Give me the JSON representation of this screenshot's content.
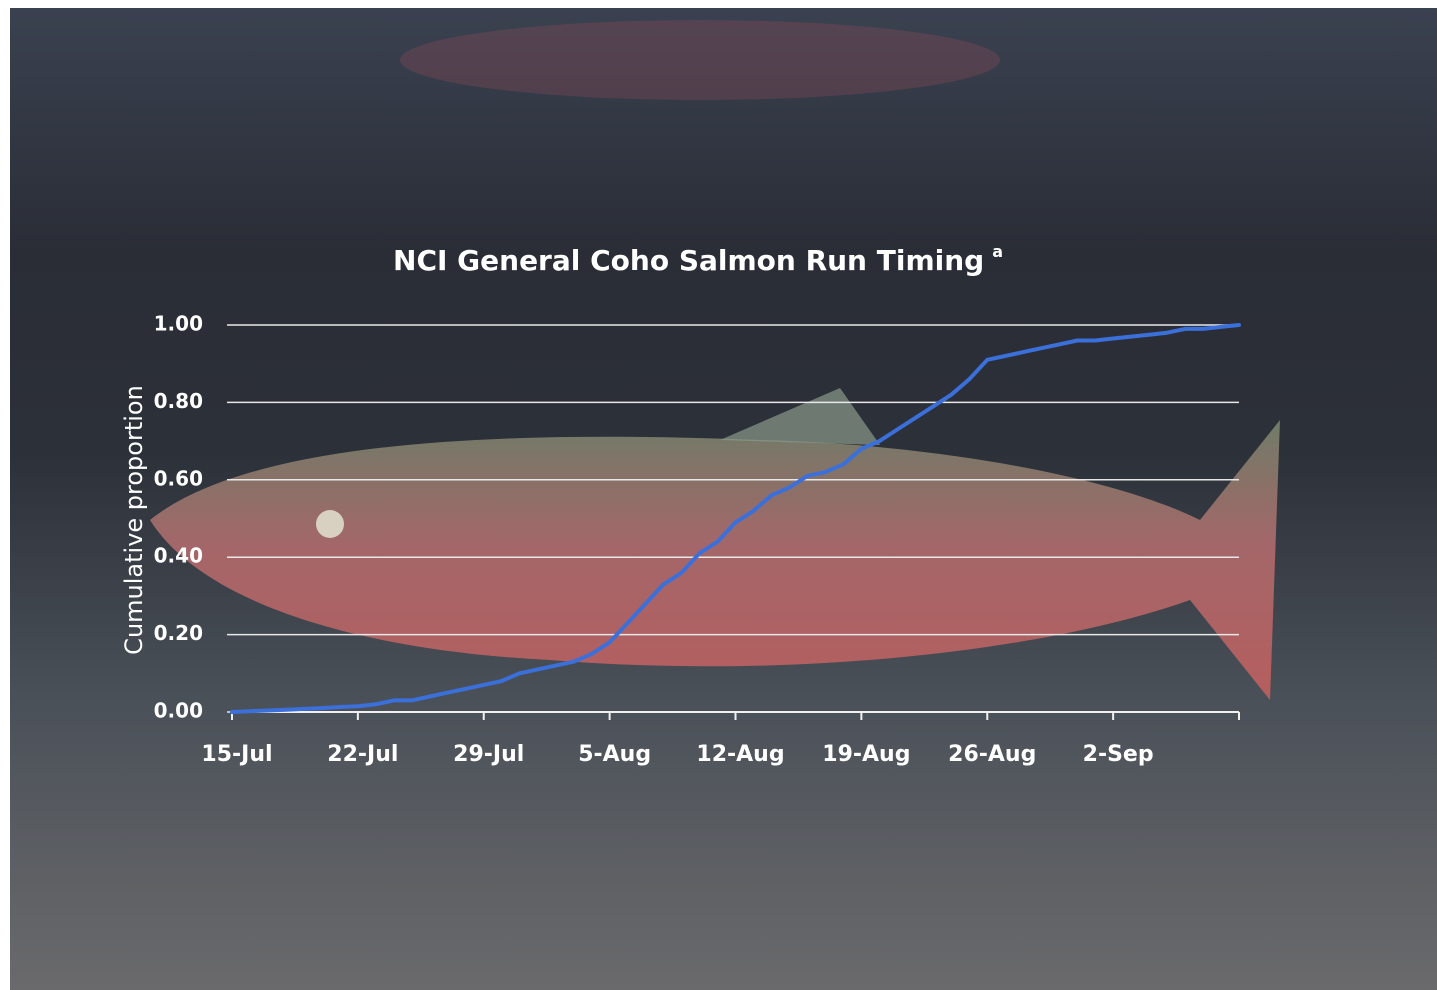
{
  "chart_data": {
    "type": "line",
    "title": "NCI General Coho Salmon Run Timing",
    "title_superscript": "a",
    "y_label": "Cumulative proportion",
    "categories": [
      "15-Jul",
      null,
      null,
      null,
      null,
      null,
      null,
      "22-Jul",
      null,
      null,
      null,
      null,
      null,
      null,
      "29-Jul",
      null,
      null,
      null,
      null,
      null,
      null,
      "5-Aug",
      null,
      null,
      null,
      null,
      null,
      null,
      "12-Aug",
      null,
      null,
      null,
      null,
      null,
      null,
      "19-Aug",
      null,
      null,
      null,
      null,
      null,
      null,
      "26-Aug",
      null,
      null,
      null,
      null,
      null,
      null,
      "2-Sep",
      null,
      null,
      null,
      null,
      null,
      null,
      null
    ],
    "values": [
      0,
      0.002,
      0.004,
      0.006,
      0.008,
      0.01,
      0.013,
      0.015,
      0.02,
      0.03,
      0.03,
      0.04,
      0.05,
      0.06,
      0.07,
      0.08,
      0.1,
      0.11,
      0.12,
      0.13,
      0.15,
      0.18,
      0.23,
      0.28,
      0.33,
      0.36,
      0.41,
      0.44,
      0.49,
      0.52,
      0.56,
      0.58,
      0.61,
      0.62,
      0.64,
      0.68,
      0.7,
      0.73,
      0.76,
      0.79,
      0.82,
      0.86,
      0.91,
      0.92,
      0.93,
      0.94,
      0.95,
      0.96,
      0.96,
      0.965,
      0.97,
      0.975,
      0.98,
      0.99,
      0.99,
      0.995,
      1
    ],
    "color": "#3b6fd9",
    "ylim": [
      0,
      1
    ],
    "yticks": [
      {
        "value": 0,
        "label": "0.00"
      },
      {
        "value": 0.2,
        "label": "0.20"
      },
      {
        "value": 0.4,
        "label": "0.40"
      },
      {
        "value": 0.6,
        "label": "0.60"
      },
      {
        "value": 0.8,
        "label": "0.80"
      },
      {
        "value": 1,
        "label": "1.00"
      }
    ],
    "grid": true
  }
}
